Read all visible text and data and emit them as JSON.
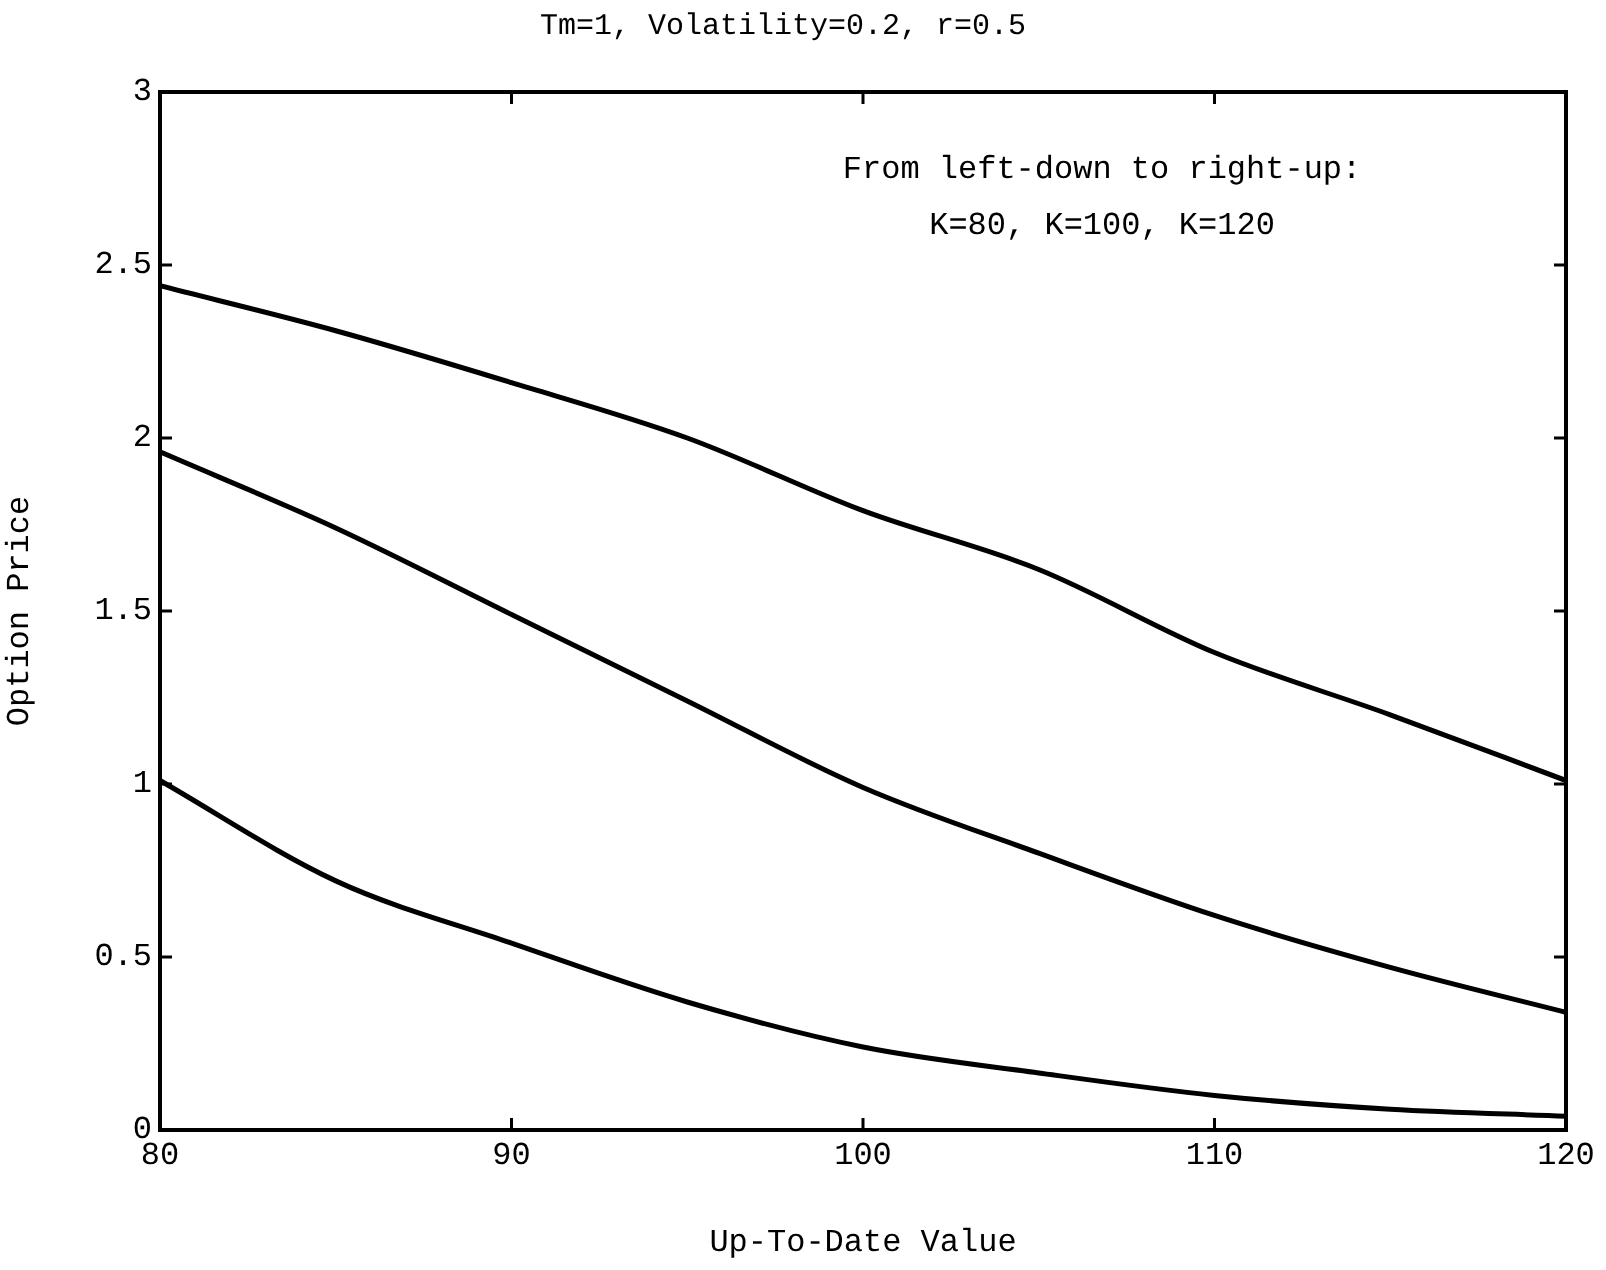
{
  "chart_data": {
    "type": "line",
    "title": "Tm=1, Volatility=0.2, r=0.5",
    "xlabel": "Up-To-Date Value",
    "ylabel": "Option Price",
    "annotations": [
      "From left-down to right-up:",
      "K=80, K=100, K=120"
    ],
    "x": [
      80,
      85,
      90,
      95,
      100,
      105,
      110,
      115,
      120
    ],
    "series": [
      {
        "color": "#000000",
        "values": [
          1.01,
          0.72,
          0.54,
          0.37,
          0.24,
          0.165,
          0.1,
          0.06,
          0.04
        ]
      },
      {
        "color": "#000000",
        "values": [
          1.96,
          1.74,
          1.49,
          1.24,
          0.99,
          0.8,
          0.62,
          0.47,
          0.34
        ]
      },
      {
        "color": "#000000",
        "values": [
          2.44,
          2.31,
          2.16,
          2.0,
          1.79,
          1.62,
          1.38,
          1.2,
          1.01
        ]
      }
    ],
    "xlim": [
      80,
      120
    ],
    "xticks": [
      80,
      90,
      100,
      110,
      120
    ],
    "ylim": [
      0,
      3
    ],
    "yticks": [
      0,
      0.5,
      1,
      1.5,
      2,
      2.5,
      3
    ],
    "grid": false,
    "legend": false,
    "marker": "none",
    "line_style": "solid"
  }
}
